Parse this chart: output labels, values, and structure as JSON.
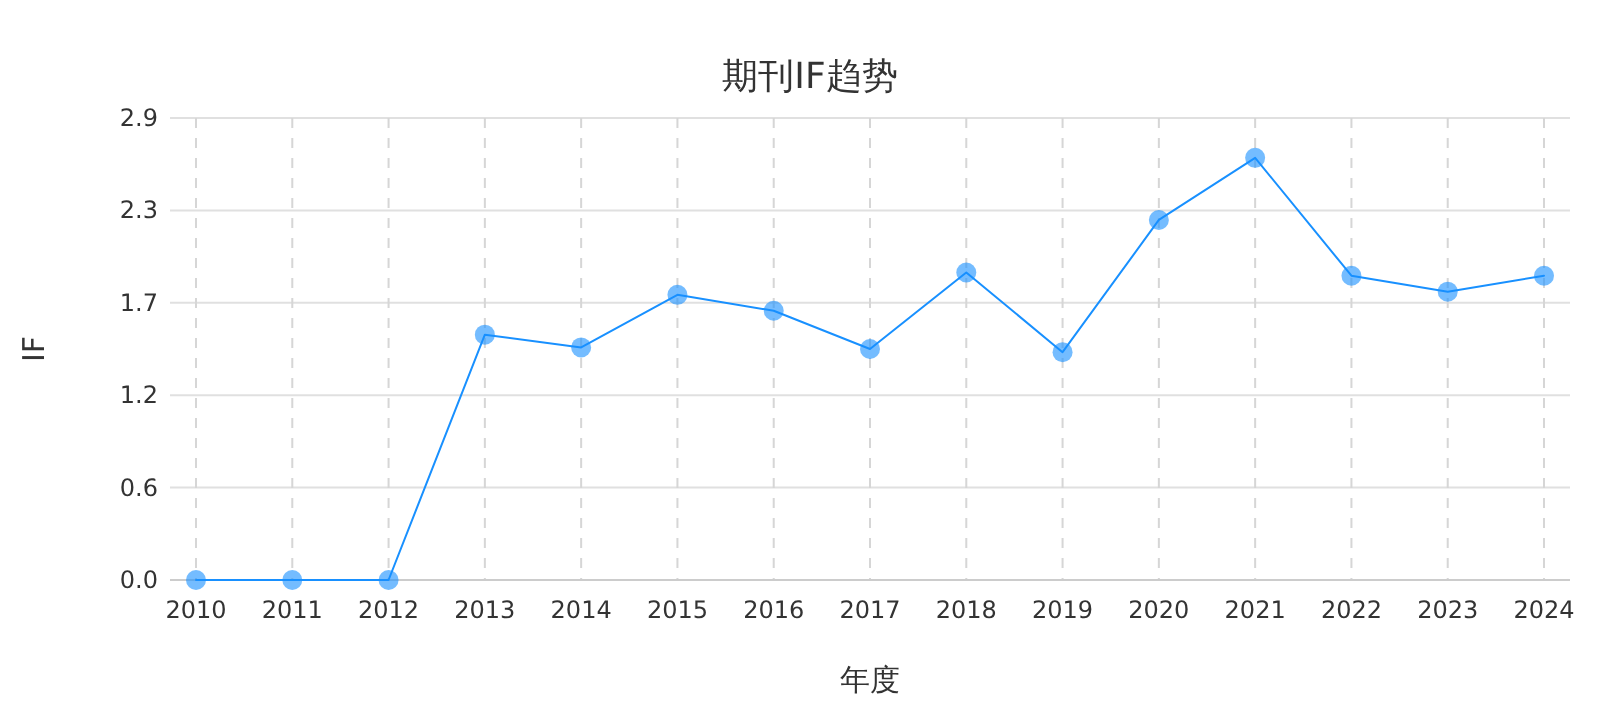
{
  "chart_data": {
    "type": "line",
    "title": "期刊IF趋势",
    "xlabel": "年度",
    "ylabel": "IF",
    "categories": [
      "2010",
      "2011",
      "2012",
      "2013",
      "2014",
      "2015",
      "2016",
      "2017",
      "2018",
      "2019",
      "2020",
      "2021",
      "2022",
      "2023",
      "2024"
    ],
    "series": [
      {
        "color": "#1890ff",
        "values": [
          0,
          0,
          0,
          1.54,
          1.46,
          1.79,
          1.69,
          1.45,
          1.93,
          1.43,
          2.26,
          2.65,
          1.91,
          1.81,
          1.91
        ]
      }
    ],
    "ylim": [
      0,
      2.9
    ],
    "yticks": [
      {
        "value": 0,
        "label": "0.0"
      },
      {
        "value": 0.58,
        "label": "0.6"
      },
      {
        "value": 1.16,
        "label": "1.2"
      },
      {
        "value": 1.74,
        "label": "1.7"
      },
      {
        "value": 2.32,
        "label": "2.3"
      },
      2.9
    ],
    "grid": true,
    "marker": "circle",
    "line_style": "solid"
  }
}
